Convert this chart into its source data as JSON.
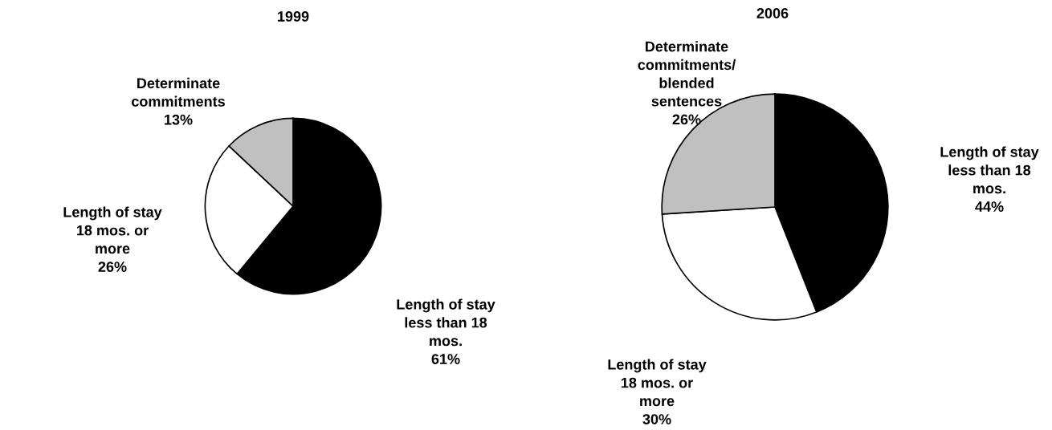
{
  "chart_data": [
    {
      "type": "pie",
      "title": "1999",
      "categories": [
        "Length of stay\nless than 18\nmos.",
        "Length of stay\n18 mos. or\nmore",
        "Determinate\ncommitments"
      ],
      "values": [
        61,
        26,
        13
      ],
      "value_labels": [
        "61%",
        "26%",
        "13%"
      ],
      "colors": [
        "#000000",
        "#ffffff",
        "#c0c0c0"
      ]
    },
    {
      "type": "pie",
      "title": "2006",
      "categories": [
        "Length of stay\nless than 18\nmos.",
        "Length of stay\n18 mos. or\nmore",
        "Determinate\ncommitments/\nblended\nsentences"
      ],
      "values": [
        44,
        30,
        26
      ],
      "value_labels": [
        "44%",
        "30%",
        "26%"
      ],
      "colors": [
        "#000000",
        "#ffffff",
        "#c0c0c0"
      ]
    }
  ]
}
